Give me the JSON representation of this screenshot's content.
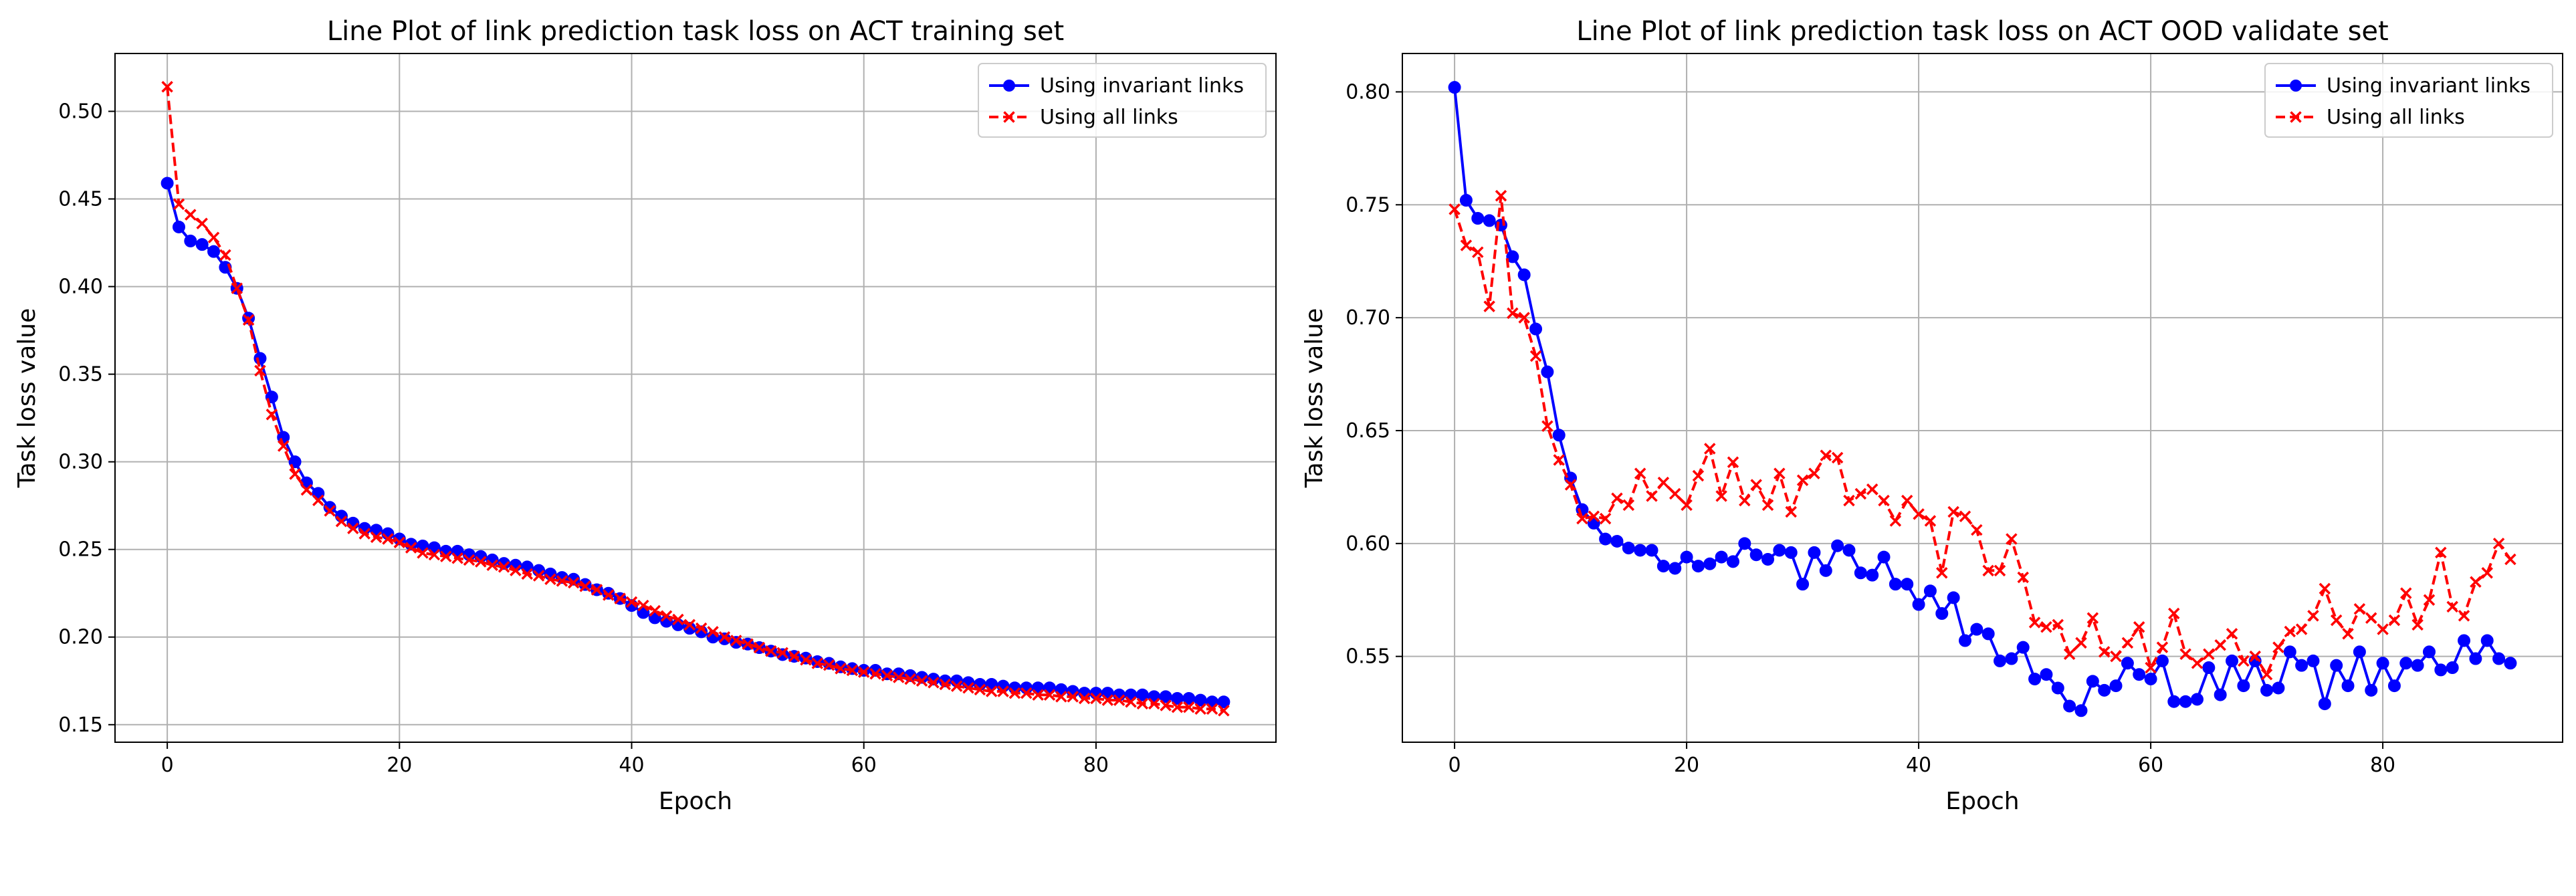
{
  "chart_data": [
    {
      "type": "line",
      "title": "Line Plot of link prediction task loss on ACT training set",
      "xlabel": "Epoch",
      "ylabel": "Task loss value",
      "xlim": [
        -4.5,
        95.5
      ],
      "ylim": [
        0.14,
        0.533
      ],
      "xticks": [
        0,
        20,
        40,
        60,
        80
      ],
      "xtick_labels": [
        "0",
        "20",
        "40",
        "60",
        "80"
      ],
      "yticks": [
        0.15,
        0.2,
        0.25,
        0.3,
        0.35,
        0.4,
        0.45,
        0.5
      ],
      "ytick_labels": [
        "0.15",
        "0.20",
        "0.25",
        "0.30",
        "0.35",
        "0.40",
        "0.45",
        "0.50"
      ],
      "grid": true,
      "legend_position": "top-right",
      "series": [
        {
          "name": "Using invariant links",
          "color": "#0000ff",
          "linestyle": "solid",
          "marker": "circle",
          "x": [
            0,
            1,
            2,
            3,
            4,
            5,
            6,
            7,
            8,
            9,
            10,
            11,
            12,
            13,
            14,
            15,
            16,
            17,
            18,
            19,
            20,
            21,
            22,
            23,
            24,
            25,
            26,
            27,
            28,
            29,
            30,
            31,
            32,
            33,
            34,
            35,
            36,
            37,
            38,
            39,
            40,
            41,
            42,
            43,
            44,
            45,
            46,
            47,
            48,
            49,
            50,
            51,
            52,
            53,
            54,
            55,
            56,
            57,
            58,
            59,
            60,
            61,
            62,
            63,
            64,
            65,
            66,
            67,
            68,
            69,
            70,
            71,
            72,
            73,
            74,
            75,
            76,
            77,
            78,
            79,
            80,
            81,
            82,
            83,
            84,
            85,
            86,
            87,
            88,
            89,
            90,
            91
          ],
          "y": [
            0.459,
            0.434,
            0.426,
            0.424,
            0.42,
            0.411,
            0.399,
            0.382,
            0.359,
            0.337,
            0.314,
            0.3,
            0.288,
            0.282,
            0.274,
            0.269,
            0.265,
            0.262,
            0.261,
            0.259,
            0.256,
            0.253,
            0.252,
            0.251,
            0.249,
            0.249,
            0.247,
            0.246,
            0.244,
            0.242,
            0.241,
            0.24,
            0.238,
            0.236,
            0.234,
            0.233,
            0.23,
            0.227,
            0.225,
            0.222,
            0.218,
            0.214,
            0.211,
            0.209,
            0.207,
            0.205,
            0.203,
            0.2,
            0.199,
            0.197,
            0.196,
            0.194,
            0.192,
            0.19,
            0.189,
            0.188,
            0.186,
            0.185,
            0.183,
            0.182,
            0.181,
            0.181,
            0.179,
            0.179,
            0.178,
            0.177,
            0.176,
            0.175,
            0.175,
            0.174,
            0.173,
            0.173,
            0.172,
            0.171,
            0.171,
            0.171,
            0.171,
            0.17,
            0.169,
            0.168,
            0.168,
            0.168,
            0.167,
            0.167,
            0.167,
            0.166,
            0.166,
            0.165,
            0.165,
            0.164,
            0.163,
            0.163
          ]
        },
        {
          "name": "Using all links",
          "color": "#ff0000",
          "linestyle": "dashed",
          "marker": "x",
          "x": [
            0,
            1,
            2,
            3,
            4,
            5,
            6,
            7,
            8,
            9,
            10,
            11,
            12,
            13,
            14,
            15,
            16,
            17,
            18,
            19,
            20,
            21,
            22,
            23,
            24,
            25,
            26,
            27,
            28,
            29,
            30,
            31,
            32,
            33,
            34,
            35,
            36,
            37,
            38,
            39,
            40,
            41,
            42,
            43,
            44,
            45,
            46,
            47,
            48,
            49,
            50,
            51,
            52,
            53,
            54,
            55,
            56,
            57,
            58,
            59,
            60,
            61,
            62,
            63,
            64,
            65,
            66,
            67,
            68,
            69,
            70,
            71,
            72,
            73,
            74,
            75,
            76,
            77,
            78,
            79,
            80,
            81,
            82,
            83,
            84,
            85,
            86,
            87,
            88,
            89,
            90,
            91
          ],
          "y": [
            0.514,
            0.447,
            0.441,
            0.436,
            0.428,
            0.418,
            0.399,
            0.381,
            0.352,
            0.327,
            0.309,
            0.293,
            0.284,
            0.278,
            0.272,
            0.266,
            0.262,
            0.259,
            0.257,
            0.256,
            0.254,
            0.251,
            0.248,
            0.247,
            0.246,
            0.245,
            0.244,
            0.243,
            0.241,
            0.24,
            0.238,
            0.236,
            0.235,
            0.233,
            0.232,
            0.231,
            0.229,
            0.227,
            0.224,
            0.222,
            0.22,
            0.218,
            0.215,
            0.212,
            0.21,
            0.207,
            0.205,
            0.203,
            0.2,
            0.198,
            0.196,
            0.194,
            0.192,
            0.191,
            0.189,
            0.187,
            0.185,
            0.184,
            0.182,
            0.181,
            0.18,
            0.179,
            0.178,
            0.177,
            0.176,
            0.175,
            0.174,
            0.173,
            0.172,
            0.171,
            0.17,
            0.169,
            0.169,
            0.168,
            0.168,
            0.167,
            0.167,
            0.166,
            0.166,
            0.165,
            0.165,
            0.164,
            0.164,
            0.163,
            0.162,
            0.162,
            0.161,
            0.16,
            0.16,
            0.159,
            0.159,
            0.158
          ]
        }
      ]
    },
    {
      "type": "line",
      "title": "Line Plot of link prediction task loss on ACT OOD validate set",
      "xlabel": "Epoch",
      "ylabel": "Task loss value",
      "xlim": [
        -4.5,
        95.5
      ],
      "ylim": [
        0.512,
        0.817
      ],
      "xticks": [
        0,
        20,
        40,
        60,
        80
      ],
      "xtick_labels": [
        "0",
        "20",
        "40",
        "60",
        "80"
      ],
      "yticks": [
        0.55,
        0.6,
        0.65,
        0.7,
        0.75,
        0.8
      ],
      "ytick_labels": [
        "0.55",
        "0.60",
        "0.65",
        "0.70",
        "0.75",
        "0.80"
      ],
      "grid": true,
      "legend_position": "top-right",
      "series": [
        {
          "name": "Using invariant links",
          "color": "#0000ff",
          "linestyle": "solid",
          "marker": "circle",
          "x": [
            0,
            1,
            2,
            3,
            4,
            5,
            6,
            7,
            8,
            9,
            10,
            11,
            12,
            13,
            14,
            15,
            16,
            17,
            18,
            19,
            20,
            21,
            22,
            23,
            24,
            25,
            26,
            27,
            28,
            29,
            30,
            31,
            32,
            33,
            34,
            35,
            36,
            37,
            38,
            39,
            40,
            41,
            42,
            43,
            44,
            45,
            46,
            47,
            48,
            49,
            50,
            51,
            52,
            53,
            54,
            55,
            56,
            57,
            58,
            59,
            60,
            61,
            62,
            63,
            64,
            65,
            66,
            67,
            68,
            69,
            70,
            71,
            72,
            73,
            74,
            75,
            76,
            77,
            78,
            79,
            80,
            81,
            82,
            83,
            84,
            85,
            86,
            87,
            88,
            89,
            90,
            91
          ],
          "y": [
            0.802,
            0.752,
            0.744,
            0.743,
            0.741,
            0.727,
            0.719,
            0.695,
            0.676,
            0.648,
            0.629,
            0.615,
            0.609,
            0.602,
            0.601,
            0.598,
            0.597,
            0.597,
            0.59,
            0.589,
            0.594,
            0.59,
            0.591,
            0.594,
            0.592,
            0.6,
            0.595,
            0.593,
            0.597,
            0.596,
            0.582,
            0.596,
            0.588,
            0.599,
            0.597,
            0.587,
            0.586,
            0.594,
            0.582,
            0.582,
            0.573,
            0.579,
            0.569,
            0.576,
            0.557,
            0.562,
            0.56,
            0.548,
            0.549,
            0.554,
            0.54,
            0.542,
            0.536,
            0.528,
            0.526,
            0.539,
            0.535,
            0.537,
            0.547,
            0.542,
            0.54,
            0.548,
            0.53,
            0.53,
            0.531,
            0.545,
            0.533,
            0.548,
            0.537,
            0.548,
            0.535,
            0.536,
            0.552,
            0.546,
            0.548,
            0.529,
            0.546,
            0.537,
            0.552,
            0.535,
            0.547,
            0.537,
            0.547,
            0.546,
            0.552,
            0.544,
            0.545,
            0.557,
            0.549,
            0.557,
            0.549,
            0.547
          ]
        },
        {
          "name": "Using all links",
          "color": "#ff0000",
          "linestyle": "dashed",
          "marker": "x",
          "x": [
            0,
            1,
            2,
            3,
            4,
            5,
            6,
            7,
            8,
            9,
            10,
            11,
            12,
            13,
            14,
            15,
            16,
            17,
            18,
            19,
            20,
            21,
            22,
            23,
            24,
            25,
            26,
            27,
            28,
            29,
            30,
            31,
            32,
            33,
            34,
            35,
            36,
            37,
            38,
            39,
            40,
            41,
            42,
            43,
            44,
            45,
            46,
            47,
            48,
            49,
            50,
            51,
            52,
            53,
            54,
            55,
            56,
            57,
            58,
            59,
            60,
            61,
            62,
            63,
            64,
            65,
            66,
            67,
            68,
            69,
            70,
            71,
            72,
            73,
            74,
            75,
            76,
            77,
            78,
            79,
            80,
            81,
            82,
            83,
            84,
            85,
            86,
            87,
            88,
            89,
            90,
            91
          ],
          "y": [
            0.748,
            0.732,
            0.729,
            0.705,
            0.754,
            0.702,
            0.7,
            0.683,
            0.652,
            0.637,
            0.626,
            0.611,
            0.612,
            0.611,
            0.62,
            0.617,
            0.631,
            0.621,
            0.627,
            0.622,
            0.617,
            0.63,
            0.642,
            0.621,
            0.636,
            0.619,
            0.626,
            0.617,
            0.631,
            0.614,
            0.628,
            0.631,
            0.639,
            0.638,
            0.619,
            0.622,
            0.624,
            0.619,
            0.61,
            0.619,
            0.613,
            0.61,
            0.587,
            0.614,
            0.612,
            0.606,
            0.588,
            0.588,
            0.602,
            0.585,
            0.565,
            0.563,
            0.564,
            0.551,
            0.556,
            0.567,
            0.552,
            0.55,
            0.556,
            0.563,
            0.545,
            0.554,
            0.569,
            0.551,
            0.547,
            0.551,
            0.555,
            0.56,
            0.548,
            0.55,
            0.542,
            0.554,
            0.561,
            0.562,
            0.568,
            0.58,
            0.566,
            0.56,
            0.571,
            0.567,
            0.562,
            0.566,
            0.578,
            0.564,
            0.575,
            0.596,
            0.572,
            0.568,
            0.583,
            0.587,
            0.6,
            0.593
          ]
        }
      ]
    }
  ]
}
